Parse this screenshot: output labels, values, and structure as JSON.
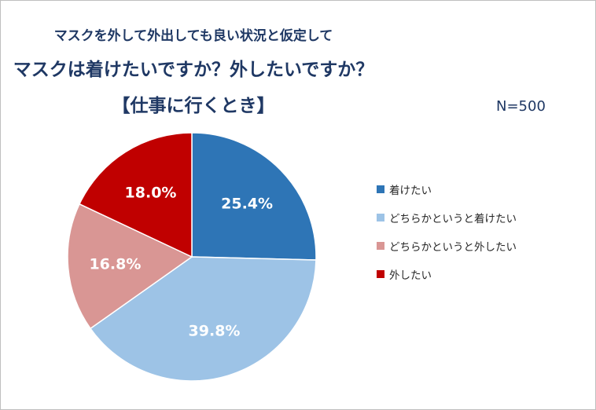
{
  "chart_data": {
    "type": "pie",
    "title": "マスクを外して外出しても良い状況と仮定して",
    "subtitle": "マスクは着けたいですか？外したいですか？",
    "scenario": "【仕事に行くとき】",
    "sample_size": "N=500",
    "start_angle": "12 o'clock, clockwise",
    "legend_position": "right",
    "slices": [
      {
        "label": "着けたい",
        "value": 25.4,
        "value_label": "25.4%",
        "color": "#2e75b6"
      },
      {
        "label": "どちらかというと着けたい",
        "value": 39.8,
        "value_label": "39.8%",
        "color": "#9dc3e6"
      },
      {
        "label": "どちらかというと外したい",
        "value": 16.8,
        "value_label": "16.8%",
        "color": "#d99694"
      },
      {
        "label": "外したい",
        "value": 18.0,
        "value_label": "18.0%",
        "color": "#c00000"
      }
    ]
  }
}
